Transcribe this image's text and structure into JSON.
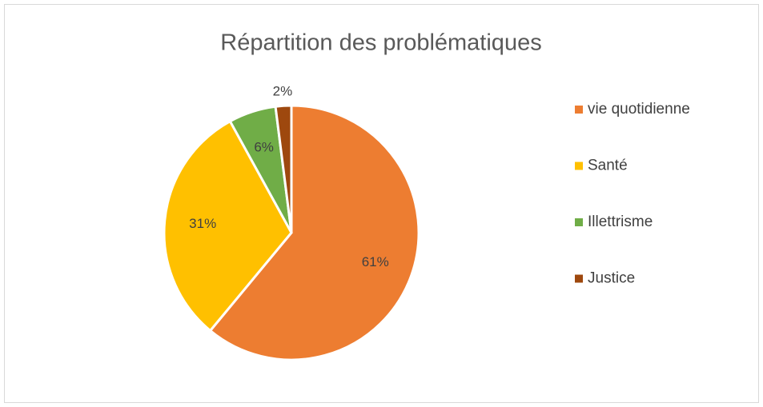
{
  "chart_data": {
    "type": "pie",
    "title": "Répartition des problématiques",
    "categories": [
      "vie quotidienne",
      "Santé",
      "Illettrisme",
      "Justice"
    ],
    "values": [
      61,
      31,
      6,
      2
    ],
    "value_labels": [
      "61%",
      "31%",
      "6%",
      "2%"
    ],
    "colors": [
      "#ED7D31",
      "#FFC000",
      "#70AD47",
      "#9E480E"
    ],
    "legend": "right"
  }
}
